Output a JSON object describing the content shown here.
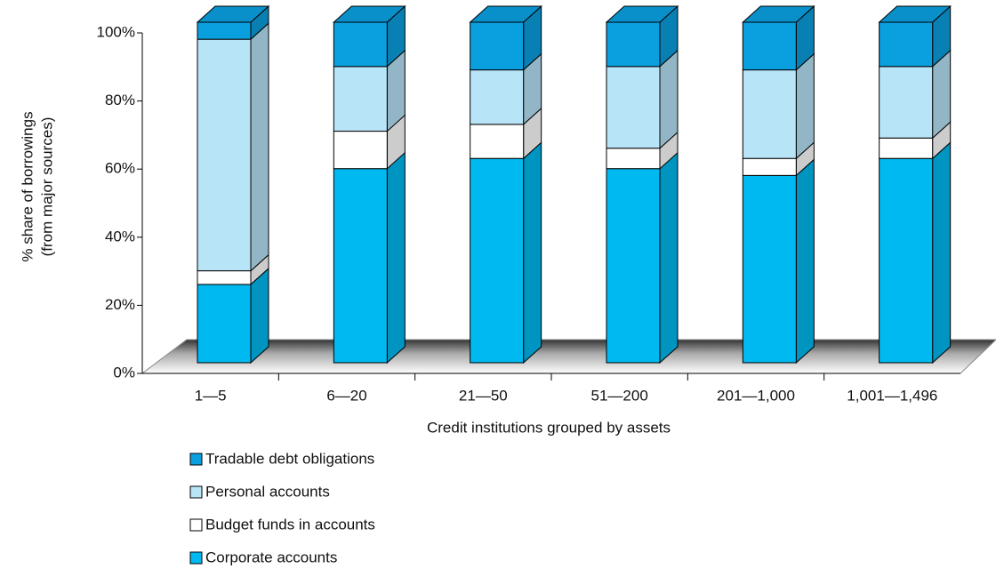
{
  "chart_data": {
    "type": "bar3d_stacked",
    "xlabel": "Credit institutions grouped by assets",
    "ylabel": [
      "% share of borrowings",
      "(from major sources)"
    ],
    "categories": [
      "1—5",
      "6—20",
      "21—50",
      "51—200",
      "201—1,000",
      "1,001—1,496"
    ],
    "series": [
      {
        "name": "Corporate accounts",
        "color": "#00b9f0",
        "values": [
          23,
          57,
          60,
          57,
          55,
          60
        ]
      },
      {
        "name": "Budget funds in accounts",
        "color": "#ffffff",
        "values": [
          4,
          11,
          10,
          6,
          5,
          6
        ]
      },
      {
        "name": "Personal accounts",
        "color": "#b8e4f8",
        "values": [
          68,
          19,
          16,
          24,
          26,
          21
        ]
      },
      {
        "name": "Tradable debt obligations",
        "color": "#0aa0e0",
        "values": [
          5,
          13,
          14,
          13,
          14,
          13
        ]
      }
    ],
    "ylim": [
      0,
      100
    ],
    "yticks": [
      {
        "value": 0,
        "label": "0%"
      },
      {
        "value": 20,
        "label": "20%"
      },
      {
        "value": 40,
        "label": "40%"
      },
      {
        "value": 60,
        "label": "60%"
      },
      {
        "value": 80,
        "label": "80%"
      },
      {
        "value": 100,
        "label": "100%"
      }
    ],
    "legend": "bottom"
  }
}
